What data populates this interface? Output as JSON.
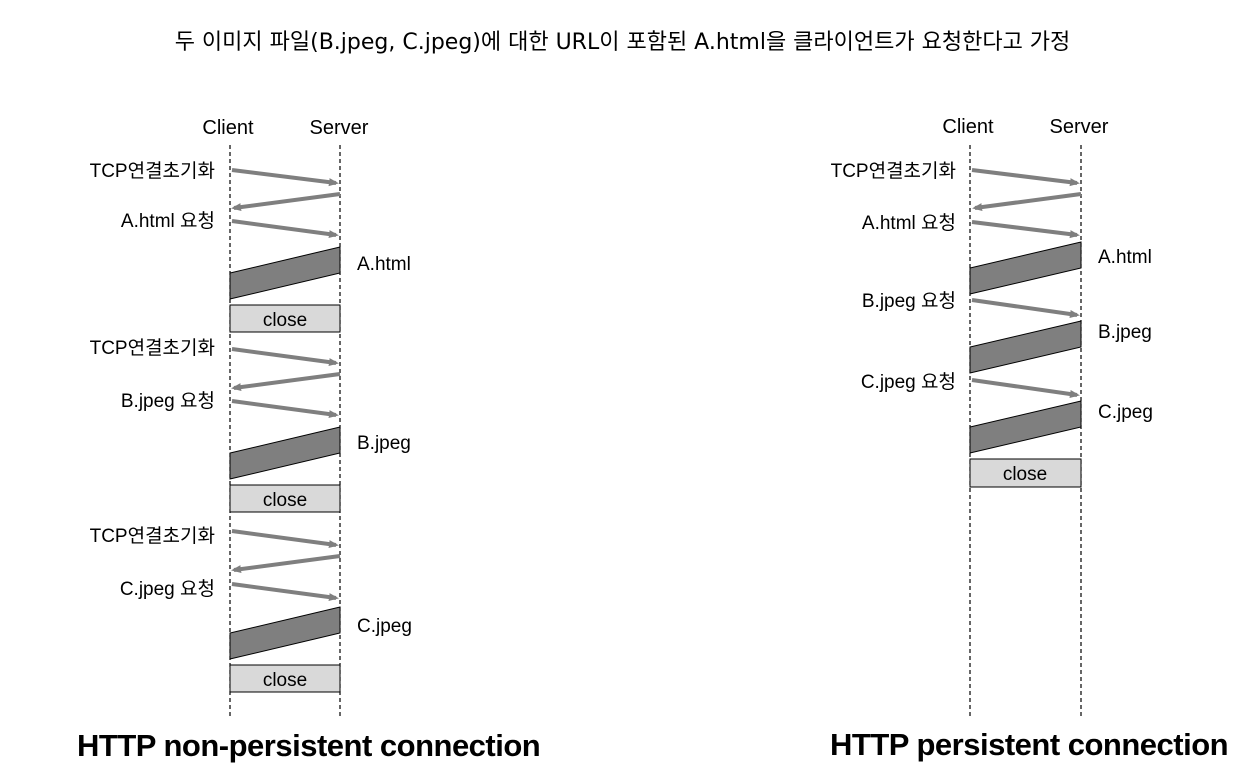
{
  "title": "두 이미지 파일(B.jpeg, C.jpeg)에 대한 URL이 포함된 A.html을 클라이언트가 요청한다고 가정",
  "non_persistent": {
    "caption": "HTTP non-persistent connection",
    "client_label": "Client",
    "server_label": "Server",
    "steps": [
      {
        "tcp": "TCP연결초기화",
        "request": "A.html 요청",
        "response": "A.html",
        "close": "close"
      },
      {
        "tcp": "TCP연결초기화",
        "request": "B.jpeg 요청",
        "response": "B.jpeg",
        "close": "close"
      },
      {
        "tcp": "TCP연결초기화",
        "request": "C.jpeg 요청",
        "response": "C.jpeg",
        "close": "close"
      }
    ]
  },
  "persistent": {
    "caption": "HTTP persistent connection",
    "client_label": "Client",
    "server_label": "Server",
    "tcp": "TCP연결초기화",
    "steps": [
      {
        "request": "A.html 요청",
        "response": "A.html"
      },
      {
        "request": "B.jpeg 요청",
        "response": "B.jpeg"
      },
      {
        "request": "C.jpeg 요청",
        "response": "C.jpeg"
      }
    ],
    "close": "close"
  },
  "colors": {
    "arrow": "#7f7f7f",
    "response_fill": "#7f7f7f",
    "close_fill": "#d9d9d9",
    "outline": "#000000"
  }
}
